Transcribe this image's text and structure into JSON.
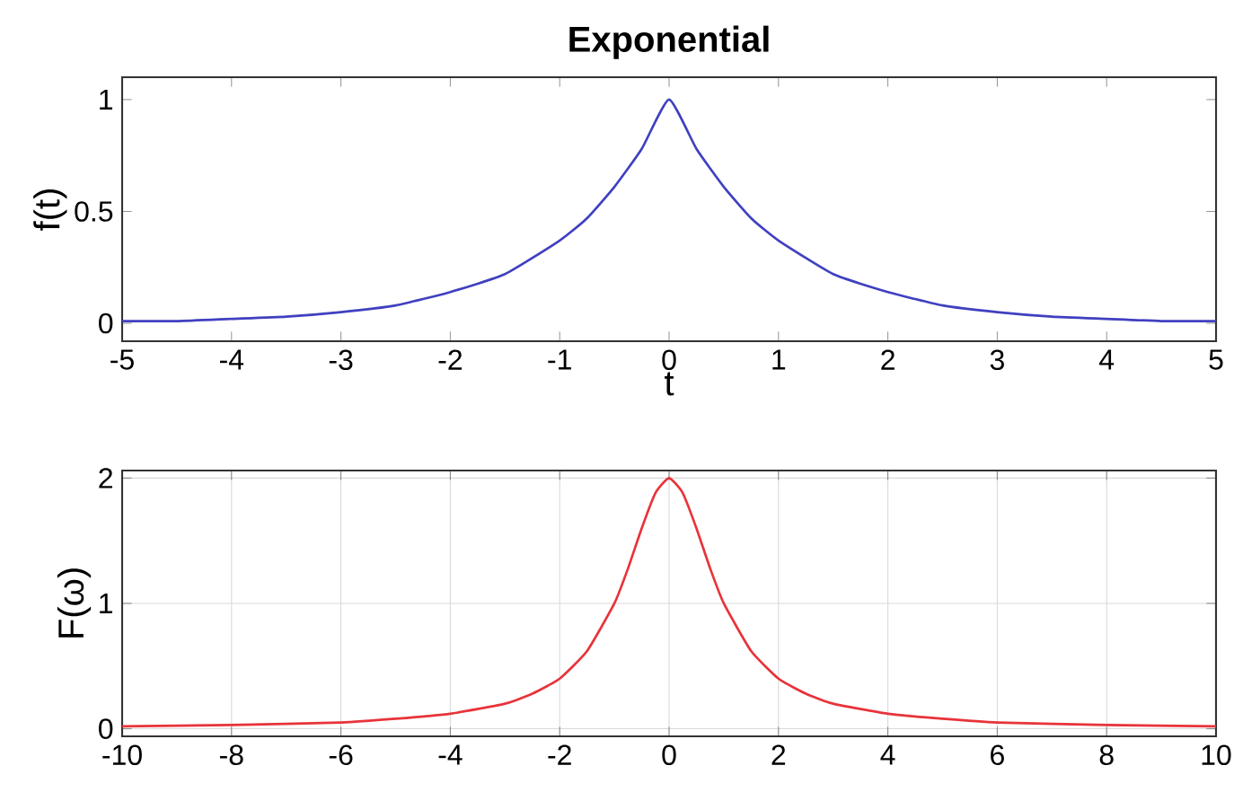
{
  "chart_data": [
    {
      "type": "line",
      "title": "Exponential",
      "xlabel": "t",
      "ylabel": "f(t)",
      "x": [
        -5,
        -4.5,
        -4,
        -3.5,
        -3,
        -2.5,
        -2,
        -1.5,
        -1,
        -0.75,
        -0.5,
        -0.25,
        0,
        0.25,
        0.5,
        0.75,
        1,
        1.5,
        2,
        2.5,
        3,
        3.5,
        4,
        4.5,
        5
      ],
      "series": [
        {
          "color": "#4040c0",
          "values": [
            0.01,
            0.01,
            0.02,
            0.03,
            0.05,
            0.08,
            0.14,
            0.22,
            0.37,
            0.47,
            0.61,
            0.78,
            1,
            0.78,
            0.61,
            0.47,
            0.37,
            0.22,
            0.14,
            0.08,
            0.05,
            0.03,
            0.02,
            0.01,
            0.01
          ]
        }
      ],
      "xlim": [
        -5,
        5
      ],
      "ylim": [
        -0.08,
        1.1
      ],
      "xticks": [
        -5,
        -4,
        -3,
        -2,
        -1,
        0,
        1,
        2,
        3,
        4,
        5
      ],
      "yticks": [
        0,
        0.5,
        1
      ],
      "grid": false
    },
    {
      "type": "line",
      "ylabel": "F(ω)",
      "x": [
        -10,
        -8,
        -6,
        -5,
        -4,
        -3,
        -2.5,
        -2,
        -1.5,
        -1,
        -0.75,
        -0.5,
        -0.25,
        0,
        0.25,
        0.5,
        0.75,
        1,
        1.5,
        2,
        2.5,
        3,
        4,
        5,
        6,
        8,
        10
      ],
      "series": [
        {
          "color": "#e8333a",
          "values": [
            0.02,
            0.03,
            0.05,
            0.08,
            0.12,
            0.2,
            0.28,
            0.4,
            0.62,
            1.0,
            1.28,
            1.6,
            1.88,
            2,
            1.88,
            1.6,
            1.28,
            1.0,
            0.62,
            0.4,
            0.28,
            0.2,
            0.12,
            0.08,
            0.05,
            0.03,
            0.02
          ]
        }
      ],
      "xlim": [
        -10,
        10
      ],
      "ylim": [
        -0.06,
        2.06
      ],
      "xticks": [
        -10,
        -8,
        -6,
        -4,
        -2,
        0,
        2,
        4,
        6,
        8,
        10
      ],
      "yticks": [
        0,
        1,
        2
      ],
      "grid": true
    }
  ]
}
